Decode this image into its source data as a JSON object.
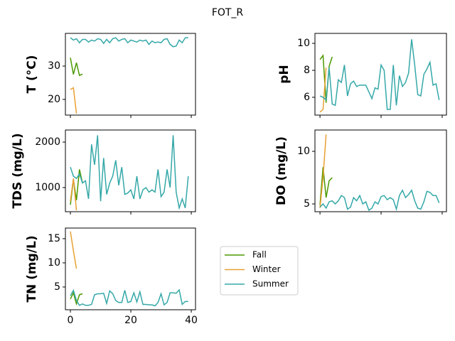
{
  "title": "FOT_R",
  "chart_data": [
    {
      "type": "line",
      "ylabel": "T  (°C)",
      "xlim": [
        -1.65,
        41.4
      ],
      "xticks": [
        0,
        20,
        40
      ],
      "show_xtick_labels": false,
      "ylim": [
        15.3,
        39.8
      ],
      "yticks": [
        20,
        30
      ],
      "series": [
        {
          "name": "Fall",
          "color": "#4c9900",
          "x": [
            0,
            1,
            2,
            3,
            4
          ],
          "values": [
            32.5,
            27.5,
            31,
            27.2,
            27.6
          ]
        },
        {
          "name": "Winter",
          "color": "#e8a034",
          "x": [
            0,
            1,
            2
          ],
          "values": [
            23,
            23.5,
            15.8
          ]
        },
        {
          "name": "Summer",
          "color": "#35a8a8",
          "x": [
            0,
            1,
            2,
            3,
            4,
            5,
            6,
            7,
            8,
            9,
            10,
            11,
            12,
            13,
            14,
            15,
            16,
            17,
            18,
            19,
            20,
            21,
            22,
            23,
            24,
            25,
            26,
            27,
            28,
            29,
            30,
            31,
            32,
            33,
            34,
            35,
            36,
            37,
            38,
            39
          ],
          "values": [
            38.5,
            37.8,
            38.2,
            37.0,
            38.0,
            38.0,
            37.2,
            37.8,
            37.5,
            38.2,
            38.0,
            36.8,
            38.0,
            37.0,
            38.2,
            38.5,
            37.5,
            38.0,
            38.2,
            37.0,
            37.8,
            37.5,
            37.2,
            37.8,
            37.5,
            37.8,
            36.5,
            37.5,
            37.0,
            37.2,
            37.0,
            38.0,
            38.2,
            36.5,
            35.8,
            36.0,
            37.8,
            37.0,
            38.5,
            38.5
          ]
        }
      ]
    },
    {
      "type": "line",
      "ylabel": "pH",
      "xlim": [
        -1.65,
        41.4
      ],
      "xticks": [
        0,
        20,
        40
      ],
      "show_xtick_labels": false,
      "ylim": [
        4.68,
        10.74
      ],
      "yticks": [
        6,
        8,
        10
      ],
      "series": [
        {
          "name": "Fall",
          "color": "#4c9900",
          "x": [
            0,
            1,
            2,
            3,
            4
          ],
          "values": [
            8.8,
            9.1,
            5.6,
            8.3,
            9.0
          ]
        },
        {
          "name": "Winter",
          "color": "#e8a034",
          "x": [
            0,
            1,
            2
          ],
          "values": [
            4.9,
            5.1,
            8.2
          ]
        },
        {
          "name": "Summer",
          "color": "#35a8a8",
          "x": [
            0,
            1,
            2,
            3,
            4,
            5,
            6,
            7,
            8,
            9,
            10,
            11,
            12,
            13,
            14,
            15,
            16,
            17,
            18,
            19,
            20,
            21,
            22,
            23,
            24,
            25,
            26,
            27,
            28,
            29,
            30,
            31,
            32,
            33,
            34,
            35,
            36,
            37,
            38,
            39
          ],
          "values": [
            6.1,
            6.0,
            5.8,
            8.2,
            5.5,
            5.4,
            7.3,
            7.1,
            8.4,
            6.1,
            7.0,
            7.2,
            6.8,
            6.9,
            6.9,
            6.9,
            6.4,
            5.9,
            6.7,
            6.6,
            8.4,
            8.0,
            5.1,
            5.1,
            8.4,
            5.4,
            7.6,
            6.8,
            7.1,
            7.8,
            10.3,
            8.4,
            6.2,
            6.1,
            7.7,
            8.1,
            8.6,
            6.9,
            7.0,
            5.8
          ]
        }
      ]
    },
    {
      "type": "line",
      "ylabel": "TDS (mg/L)",
      "xlim": [
        -1.65,
        41.4
      ],
      "xticks": [
        0,
        20,
        40
      ],
      "show_xtick_labels": false,
      "ylim": [
        469,
        2266
      ],
      "yticks": [
        1000,
        2000
      ],
      "series": [
        {
          "name": "Fall",
          "color": "#4c9900",
          "x": [
            0,
            1,
            2,
            3,
            4
          ],
          "values": [
            620,
            1180,
            720,
            1400,
            1100
          ]
        },
        {
          "name": "Winter",
          "color": "#e8a034",
          "x": [
            0,
            1,
            2
          ],
          "values": [
            700,
            1200,
            500
          ]
        },
        {
          "name": "Summer",
          "color": "#35a8a8",
          "x": [
            0,
            1,
            2,
            3,
            4,
            5,
            6,
            7,
            8,
            9,
            10,
            11,
            12,
            13,
            14,
            15,
            16,
            17,
            18,
            19,
            20,
            21,
            22,
            23,
            24,
            25,
            26,
            27,
            28,
            29,
            30,
            31,
            32,
            33,
            34,
            35,
            36,
            37,
            38,
            39
          ],
          "values": [
            1450,
            1250,
            1200,
            1300,
            1100,
            1150,
            750,
            1950,
            1500,
            2150,
            700,
            1650,
            850,
            1100,
            1250,
            1600,
            1050,
            1450,
            850,
            880,
            950,
            750,
            1250,
            750,
            950,
            1000,
            900,
            950,
            900,
            1400,
            800,
            900,
            1400,
            1000,
            2150,
            900,
            550,
            750,
            550,
            1250
          ]
        }
      ]
    },
    {
      "type": "line",
      "ylabel": "DO (mg/L)",
      "xlim": [
        -1.65,
        41.4
      ],
      "xticks": [
        0,
        20,
        40
      ],
      "show_xtick_labels": false,
      "ylim": [
        4.26,
        12.03
      ],
      "yticks": [
        5,
        10
      ],
      "series": [
        {
          "name": "Fall",
          "color": "#4c9900",
          "x": [
            0,
            1,
            2,
            3,
            4
          ],
          "values": [
            4.9,
            8.5,
            5.6,
            7.2,
            7.5
          ]
        },
        {
          "name": "Winter",
          "color": "#e8a034",
          "x": [
            0,
            1,
            2
          ],
          "values": [
            4.6,
            7.5,
            11.6
          ]
        },
        {
          "name": "Summer",
          "color": "#35a8a8",
          "x": [
            0,
            1,
            2,
            3,
            4,
            5,
            6,
            7,
            8,
            9,
            10,
            11,
            12,
            13,
            14,
            15,
            16,
            17,
            18,
            19,
            20,
            21,
            22,
            23,
            24,
            25,
            26,
            27,
            28,
            29,
            30,
            31,
            32,
            33,
            34,
            35,
            36,
            37,
            38,
            39
          ],
          "values": [
            4.7,
            5.0,
            4.6,
            5.2,
            5.3,
            5.0,
            5.3,
            5.8,
            5.6,
            4.5,
            4.7,
            5.6,
            5.3,
            5.8,
            5.0,
            5.2,
            4.4,
            4.6,
            5.2,
            5.0,
            5.7,
            5.8,
            5.4,
            5.6,
            5.4,
            4.5,
            5.8,
            6.3,
            5.6,
            5.9,
            6.3,
            5.3,
            4.6,
            4.5,
            5.2,
            6.2,
            6.1,
            5.8,
            5.8,
            5.1
          ]
        }
      ]
    },
    {
      "type": "line",
      "ylabel": "TN (mg/L)",
      "xlim": [
        -1.65,
        41.4
      ],
      "xticks": [
        0,
        20,
        40
      ],
      "show_xtick_labels": true,
      "ylim": [
        0.29,
        17.2
      ],
      "yticks": [
        5,
        10,
        15
      ],
      "series": [
        {
          "name": "Fall",
          "color": "#4c9900",
          "x": [
            0,
            1,
            2,
            3,
            4
          ],
          "values": [
            2.5,
            3.8,
            1.5,
            3.4,
            3.6
          ]
        },
        {
          "name": "Winter",
          "color": "#e8a034",
          "x": [
            0,
            1,
            2
          ],
          "values": [
            16.5,
            12.5,
            8.8
          ]
        },
        {
          "name": "Summer",
          "color": "#35a8a8",
          "x": [
            0,
            1,
            2,
            3,
            4,
            5,
            6,
            7,
            8,
            9,
            10,
            11,
            12,
            13,
            14,
            15,
            16,
            17,
            18,
            19,
            20,
            21,
            22,
            23,
            24,
            25,
            26,
            27,
            28,
            29,
            30,
            31,
            32,
            33,
            34,
            35,
            36,
            37,
            38,
            39
          ],
          "values": [
            3.2,
            4.3,
            2.2,
            1.2,
            1.5,
            1.2,
            1.2,
            1.4,
            3.4,
            3.6,
            3.6,
            3.7,
            1.6,
            4.2,
            3.6,
            2.2,
            1.8,
            1.8,
            4.3,
            1.8,
            2.0,
            3.8,
            1.9,
            4.0,
            1.4,
            1.4,
            1.3,
            1.3,
            1.1,
            1.8,
            3.6,
            1.3,
            1.8,
            3.8,
            3.8,
            3.7,
            4.4,
            1.4,
            2.0,
            2.0
          ]
        }
      ]
    }
  ]
}
